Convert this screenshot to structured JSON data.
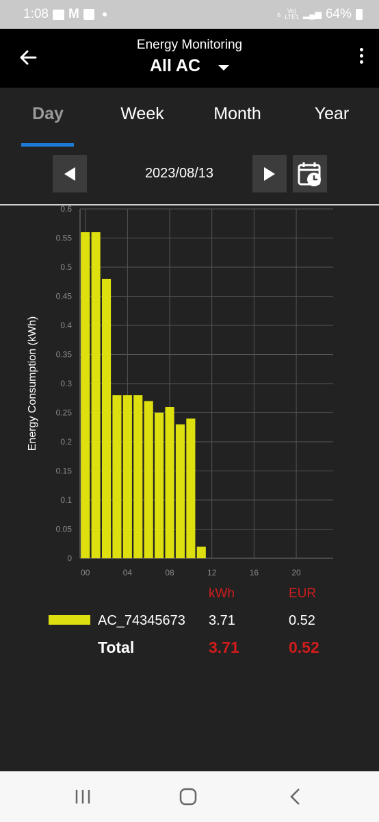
{
  "status": {
    "time": "1:08",
    "battery": "64%",
    "network_label": "LTE1",
    "volte_label": "Vo)",
    "signal_num": "6"
  },
  "appbar": {
    "title": "Energy Monitoring",
    "subtitle": "All AC"
  },
  "tabs": [
    {
      "label": "Day",
      "active": true
    },
    {
      "label": "Week",
      "active": false
    },
    {
      "label": "Month",
      "active": false
    },
    {
      "label": "Year",
      "active": false
    }
  ],
  "date_nav": {
    "date": "2023/08/13"
  },
  "chart_data": {
    "type": "bar",
    "ylabel": "Energy Consumption (kWh)",
    "xlabel": "",
    "ylim": [
      0,
      0.6
    ],
    "xlim": [
      -0.5,
      23.5
    ],
    "y_ticks": [
      "0",
      "0.05",
      "0.1",
      "0.15",
      "0.2",
      "0.25",
      "0.3",
      "0.35",
      "0.4",
      "0.45",
      "0.5",
      "0.55",
      "0.6"
    ],
    "x_ticks": [
      "00",
      "04",
      "08",
      "12",
      "16",
      "20"
    ],
    "x": [
      0,
      1,
      2,
      3,
      4,
      5,
      6,
      7,
      8,
      9,
      10,
      11
    ],
    "series": [
      {
        "name": "AC_74345673",
        "color": "#dde00e",
        "values": [
          0.56,
          0.56,
          0.48,
          0.28,
          0.28,
          0.28,
          0.27,
          0.25,
          0.26,
          0.23,
          0.24,
          0.02
        ]
      }
    ],
    "grid": true
  },
  "summary": {
    "col_kwh": "kWh",
    "col_eur": "EUR",
    "device": "AC_74345673",
    "device_kwh": "3.71",
    "device_eur": "0.52",
    "total_label": "Total",
    "total_kwh": "3.71",
    "total_eur": "0.52"
  },
  "colors": {
    "accent": "#1f7ad6",
    "bar": "#dde00e",
    "highlight": "#d01c1c",
    "background": "#222222"
  }
}
